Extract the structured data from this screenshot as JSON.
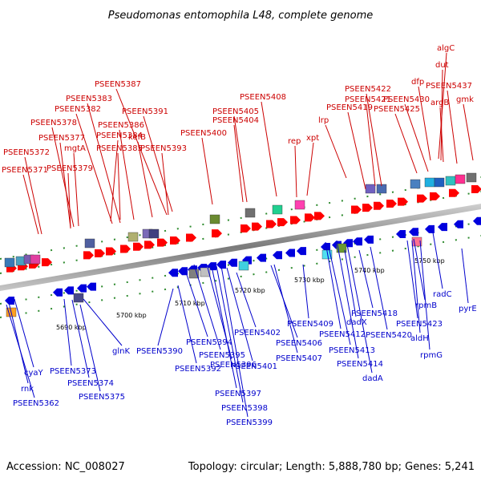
{
  "title": "Pseudomonas entomophila L48, complete genome",
  "footer": {
    "accession": "Accession: NC_008027",
    "topology": "Topology: circular; Length: 5,888,780 bp; Genes: 5,241"
  },
  "scale_ticks": [
    "5690 kbp",
    "5700 kbp",
    "5710 kbp",
    "5720 kbp",
    "5730 kbp",
    "5740 kbp",
    "5750 kbp"
  ],
  "top_labels": [
    "PSEEN5387",
    "PSEEN5383",
    "PSEEN5382",
    "PSEEN5391",
    "PSEEN5408",
    "PSEEN5405",
    "PSEEN5404",
    "PSEEN5378",
    "PSEEN5386",
    "PSEEN5377",
    "kefB",
    "mgtA",
    "PSEEN5384",
    "PSEEN5372",
    "PSEEN5385",
    "PSEEN5393",
    "PSEEN5400",
    "PSEEN5379",
    "PSEEN5371",
    "rep",
    "xpt",
    "lrp",
    "PSEEN5422",
    "PSEEN5421",
    "PSEEN5419",
    "PSEEN5430",
    "PSEEN5425",
    "algC",
    "dut",
    "dfp",
    "PSEEN5437",
    "argB",
    "gmk"
  ],
  "bottom_labels": [
    "cyaY",
    "rnk",
    "PSEEN5362",
    "PSEEN5373",
    "PSEEN5374",
    "PSEEN5375",
    "glnK",
    "PSEEN5390",
    "PSEEN5394",
    "PSEEN5392",
    "PSEEN5395",
    "PSEEN5396",
    "PSEEN5397",
    "PSEEN5398",
    "PSEEN5399",
    "PSEEN5402",
    "PSEEN5401",
    "PSEEN5406",
    "PSEEN5407",
    "PSEEN5409",
    "dadX",
    "PSEEN5412",
    "PSEEN5413",
    "PSEEN5414",
    "dadA",
    "PSEEN5418",
    "PSEEN5420",
    "PSEEN5423",
    "aldH",
    "rpmB",
    "rpmG",
    "radC",
    "pyrE"
  ],
  "colors": {
    "forward": "#ff0000",
    "reverse": "#0000dd",
    "backbone": "#999999"
  }
}
